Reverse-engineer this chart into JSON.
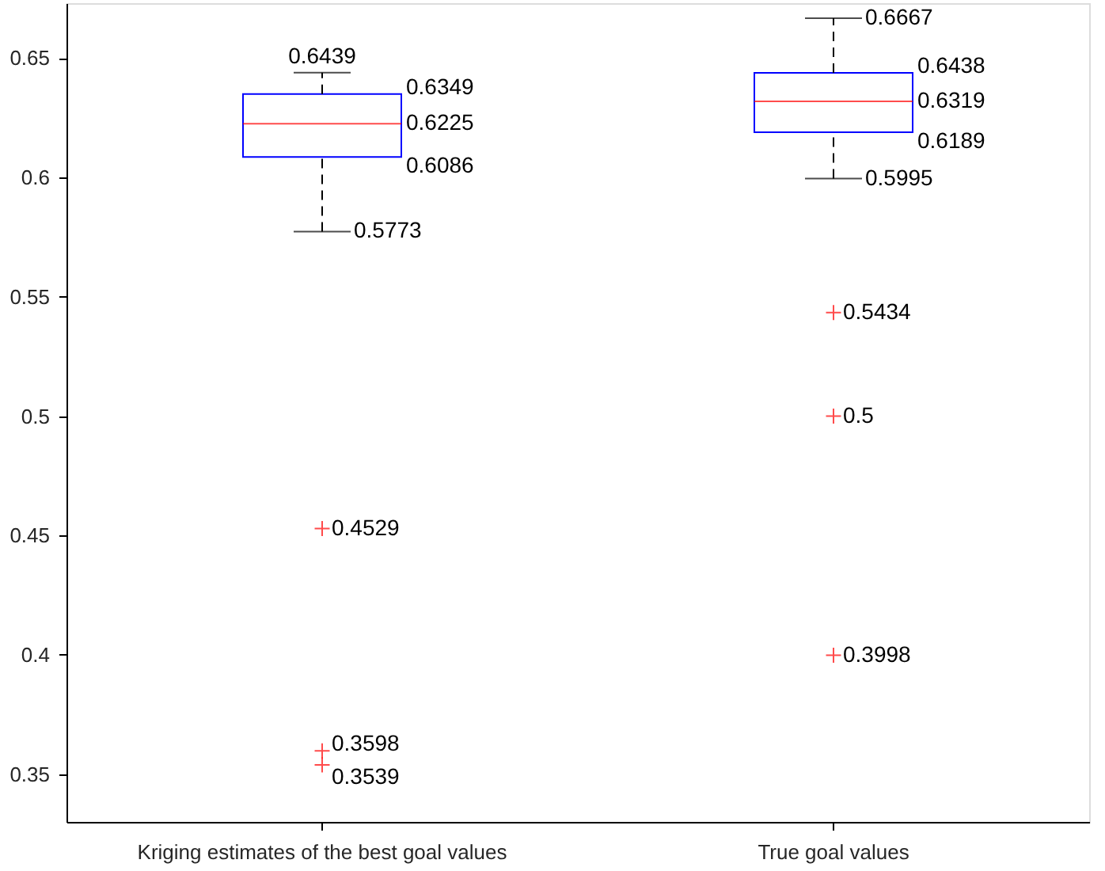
{
  "chart_data": {
    "type": "box",
    "categories": [
      "Kriging estimates of the best goal values",
      "True goal values"
    ],
    "boxes": [
      {
        "low": 0.5773,
        "q1": 0.6086,
        "median": 0.6225,
        "q3": 0.6349,
        "high": 0.6439,
        "outliers": [
          0.4529,
          0.3598,
          0.3539
        ]
      },
      {
        "low": 0.5995,
        "q1": 0.6189,
        "median": 0.6319,
        "q3": 0.6438,
        "high": 0.6667,
        "outliers": [
          0.5434,
          0.5,
          0.3998
        ]
      }
    ],
    "annotations": [
      "0.6439",
      "0.6349",
      "0.6225",
      "0.6086",
      "0.5773",
      "0.4529",
      "0.3598",
      "0.3539",
      "0.6667",
      "0.6438",
      "0.6319",
      "0.6189",
      "0.5995",
      "0.5434",
      "0.5",
      "0.3998"
    ],
    "ylim": [
      0.33,
      0.673
    ],
    "yticks": [
      0.35,
      {
        "value": 0.4,
        "label": "0.4"
      },
      0.45,
      {
        "value": 0.5,
        "label": "0.5"
      },
      0.55,
      {
        "value": 0.6,
        "label": "0.6"
      },
      0.65
    ],
    "grid": false
  }
}
